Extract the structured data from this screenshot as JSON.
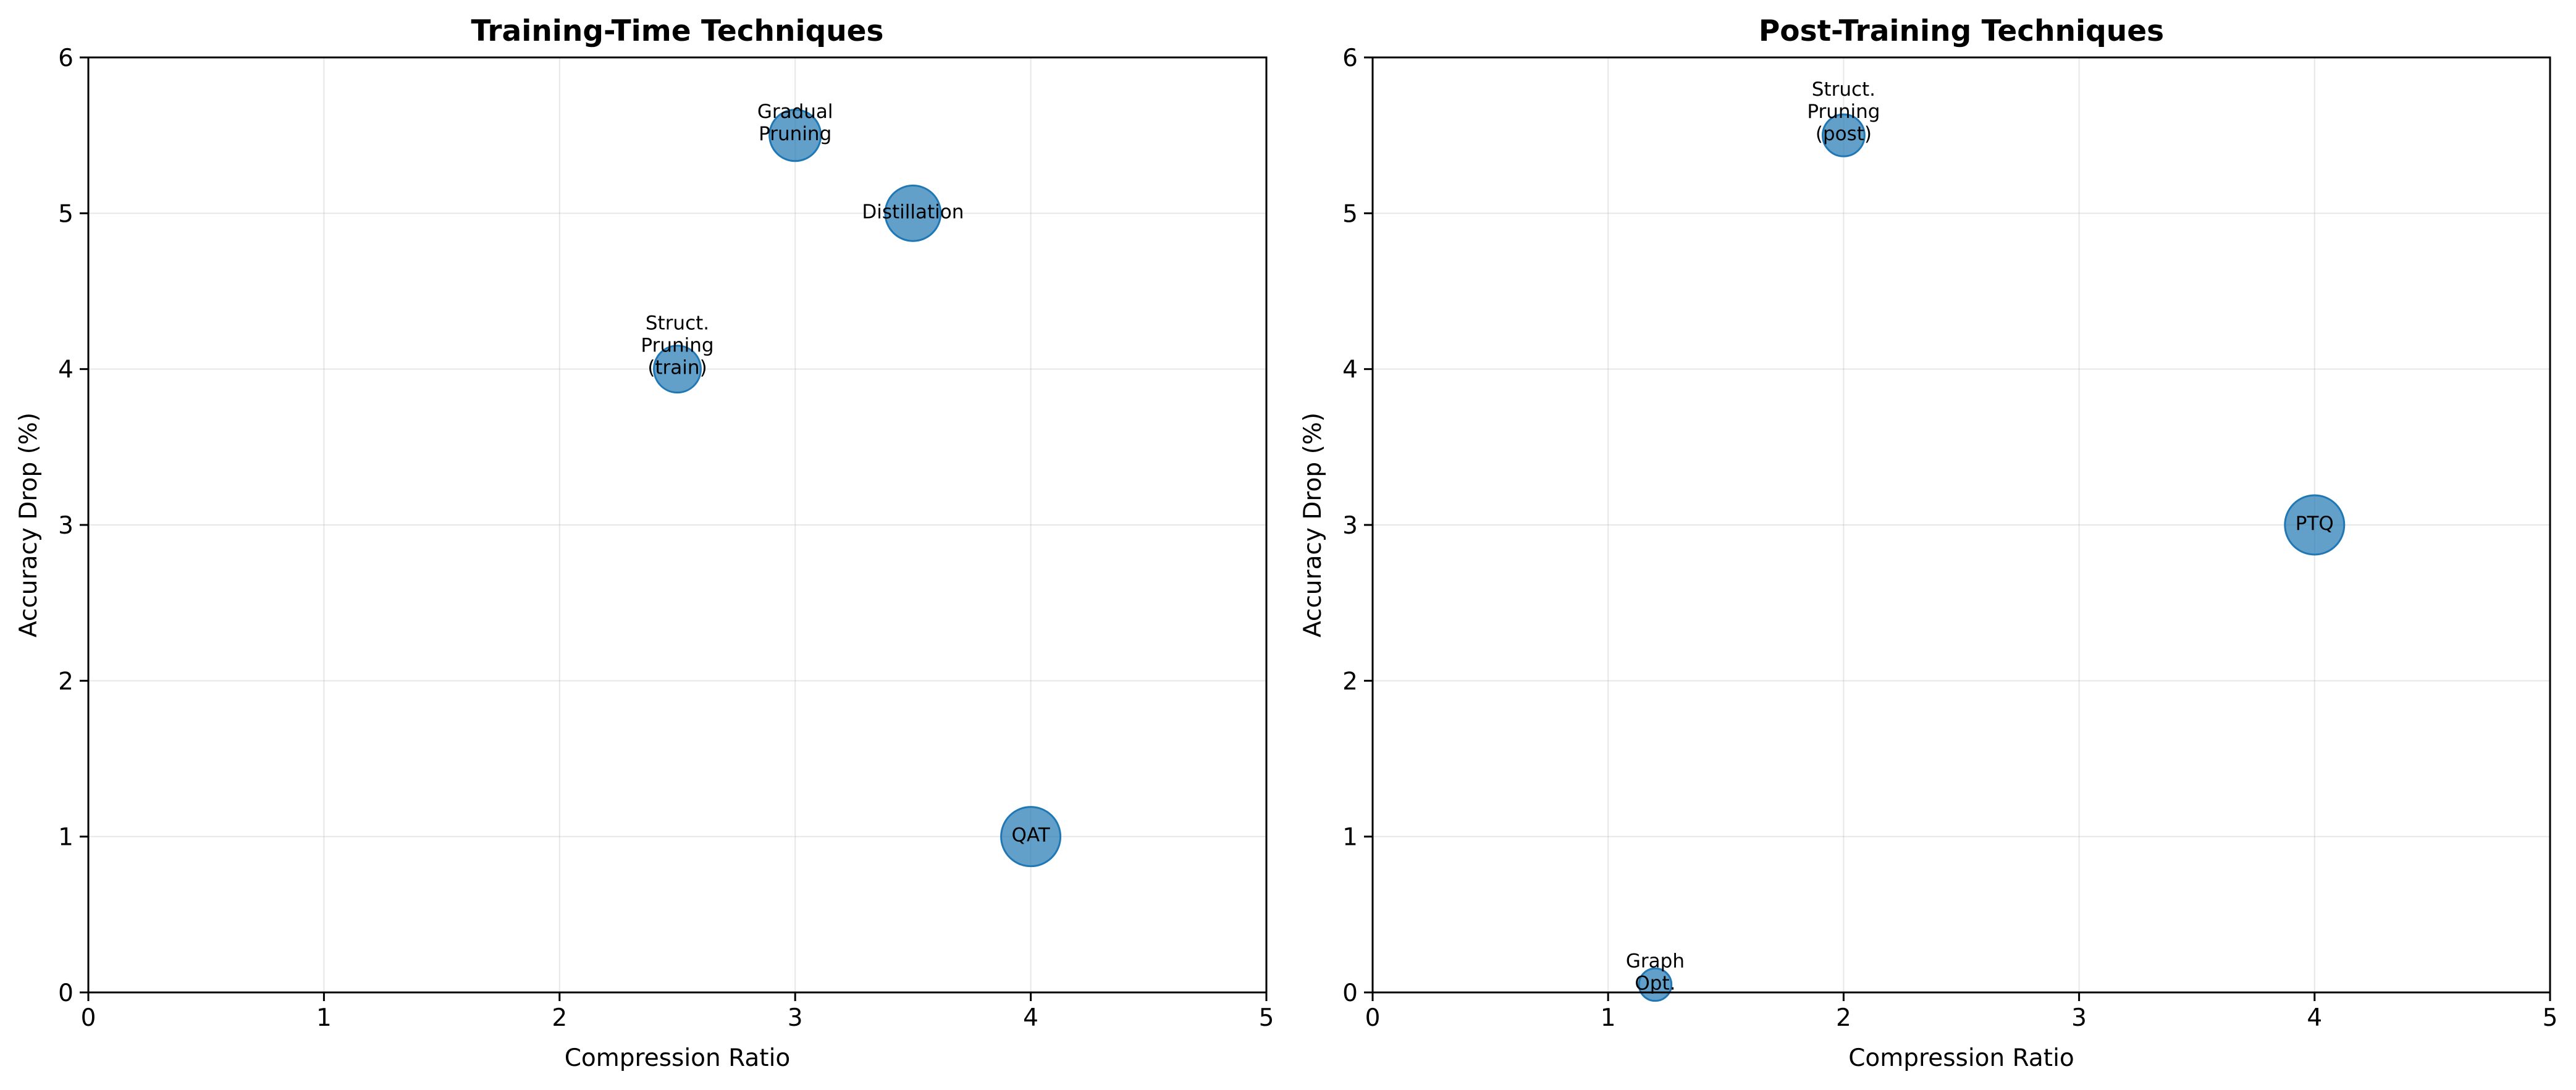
{
  "chart_data": [
    {
      "type": "scatter",
      "title": "Training-Time Techniques",
      "xlabel": "Compression Ratio",
      "ylabel": "Accuracy Drop (%)",
      "xlim": [
        0,
        5
      ],
      "ylim": [
        0,
        6
      ],
      "xticks": [
        "0",
        "1",
        "2",
        "3",
        "4",
        "5"
      ],
      "yticks": [
        "0",
        "1",
        "2",
        "3",
        "4",
        "5",
        "6"
      ],
      "grid": true,
      "marker_color": "#1f77b4",
      "points": [
        {
          "label": "Gradual\nPruning",
          "x": 3.0,
          "y": 5.5,
          "size": 3.0
        },
        {
          "label": "Distillation",
          "x": 3.5,
          "y": 5.0,
          "size": 3.5
        },
        {
          "label": "Struct.\nPruning\n(train)",
          "x": 2.5,
          "y": 4.0,
          "size": 2.5
        },
        {
          "label": "QAT",
          "x": 4.0,
          "y": 1.0,
          "size": 4.0
        }
      ]
    },
    {
      "type": "scatter",
      "title": "Post-Training Techniques",
      "xlabel": "Compression Ratio",
      "ylabel": "Accuracy Drop (%)",
      "xlim": [
        0,
        5
      ],
      "ylim": [
        0,
        6
      ],
      "xticks": [
        "0",
        "1",
        "2",
        "3",
        "4",
        "5"
      ],
      "yticks": [
        "0",
        "1",
        "2",
        "3",
        "4",
        "5",
        "6"
      ],
      "grid": true,
      "marker_color": "#1f77b4",
      "points": [
        {
          "label": "Struct.\nPruning\n(post)",
          "x": 2.0,
          "y": 5.5,
          "size": 2.0
        },
        {
          "label": "PTQ",
          "x": 4.0,
          "y": 3.0,
          "size": 4.0
        },
        {
          "label": "Graph\nOpt.",
          "x": 1.2,
          "y": 0.05,
          "size": 1.2
        }
      ]
    }
  ]
}
